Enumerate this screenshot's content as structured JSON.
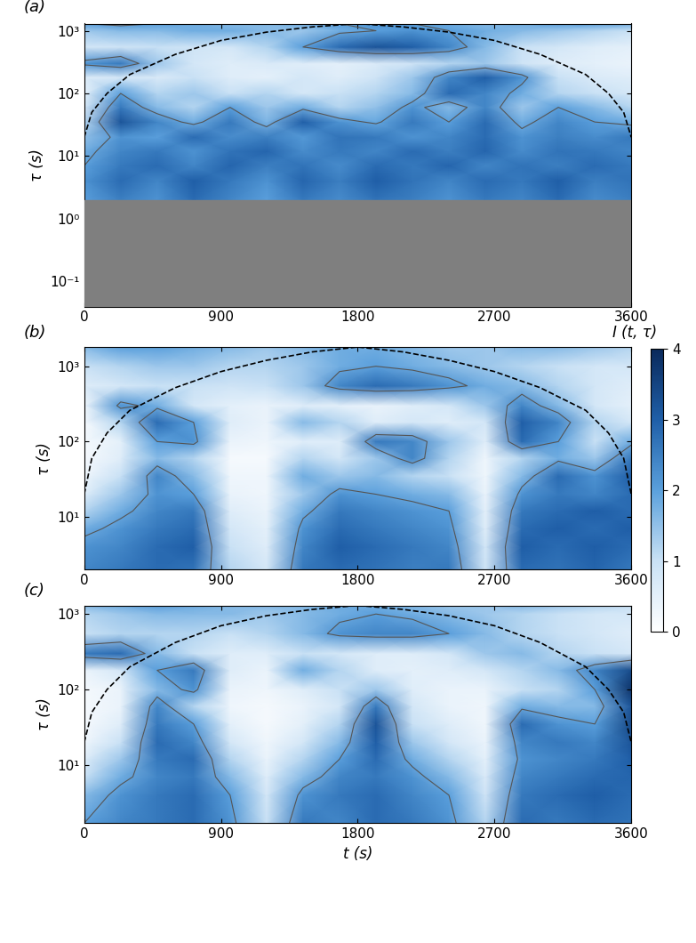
{
  "chart_data": [
    {
      "type": "heatmap",
      "panel_label": "(a)",
      "ylabel": "τ (s)",
      "log": "y",
      "xlim": [
        0,
        3600
      ],
      "xticks": [
        0,
        900,
        1800,
        2700,
        3600
      ],
      "ylim": [
        0.04,
        1300
      ],
      "yticks": [
        {
          "value": 0.1,
          "label": "10⁻¹"
        },
        {
          "value": 1,
          "label": "10⁰"
        },
        {
          "value": 10,
          "label": "10¹"
        },
        {
          "value": 100,
          "label": "10²"
        },
        {
          "value": 1000,
          "label": "10³"
        }
      ],
      "mask_below": 2,
      "contour_levels": [
        2
      ],
      "t": [
        0,
        240,
        480,
        720,
        960,
        1200,
        1440,
        1680,
        1920,
        2160,
        2400,
        2640,
        2880,
        3120,
        3360,
        3600
      ],
      "tau": [
        2,
        4,
        7,
        12,
        20,
        35,
        60,
        100,
        180,
        300,
        550,
        1000,
        1300
      ],
      "cells": [
        [
          2.0,
          2.5,
          2.2,
          2.8,
          2.4,
          2.0,
          2.6,
          2.3,
          2.7,
          2.5,
          2.2,
          2.6,
          2.4,
          2.8,
          2.3,
          2.5
        ],
        [
          2.2,
          2.8,
          2.4,
          3.0,
          2.6,
          2.2,
          2.9,
          2.5,
          3.0,
          2.7,
          2.4,
          2.8,
          2.6,
          3.0,
          2.5,
          2.7
        ],
        [
          2.0,
          2.6,
          2.8,
          2.4,
          2.9,
          2.5,
          2.7,
          2.3,
          2.8,
          2.6,
          2.9,
          2.4,
          2.7,
          2.5,
          2.8,
          2.6
        ],
        [
          1.8,
          2.4,
          2.6,
          2.2,
          2.7,
          2.9,
          2.3,
          2.6,
          2.4,
          2.8,
          2.5,
          2.9,
          2.3,
          2.7,
          2.6,
          2.4
        ],
        [
          1.5,
          2.2,
          2.0,
          2.8,
          2.3,
          2.5,
          2.1,
          2.7,
          2.6,
          2.2,
          2.4,
          2.8,
          2.2,
          2.5,
          2.3,
          2.6
        ],
        [
          1.2,
          3.2,
          2.4,
          1.8,
          2.6,
          1.7,
          3.0,
          2.2,
          1.9,
          2.6,
          2.0,
          2.8,
          1.8,
          2.4,
          2.0,
          1.8
        ],
        [
          0.8,
          2.6,
          1.6,
          1.2,
          2.0,
          1.4,
          1.8,
          1.2,
          1.5,
          2.2,
          1.6,
          2.4,
          1.4,
          2.0,
          1.6,
          1.2
        ],
        [
          0.5,
          2.0,
          1.2,
          1.4,
          1.0,
          1.2,
          0.8,
          1.0,
          1.2,
          1.6,
          2.8,
          2.4,
          1.8,
          1.2,
          1.0,
          0.8
        ],
        [
          0.6,
          0.8,
          0.7,
          1.0,
          0.6,
          0.5,
          0.8,
          0.6,
          0.9,
          1.4,
          2.4,
          3.0,
          2.2,
          1.0,
          0.7,
          0.6
        ],
        [
          2.2,
          2.6,
          1.4,
          0.8,
          0.6,
          0.7,
          0.6,
          0.5,
          0.7,
          0.9,
          1.2,
          1.4,
          0.9,
          0.6,
          0.5,
          0.4
        ],
        [
          0.8,
          0.9,
          1.0,
          0.9,
          0.8,
          1.2,
          2.0,
          2.8,
          3.2,
          3.0,
          2.4,
          1.6,
          1.0,
          0.8,
          0.6,
          0.5
        ],
        [
          1.4,
          1.6,
          1.6,
          1.8,
          1.8,
          1.6,
          1.4,
          1.8,
          2.0,
          2.2,
          2.0,
          1.8,
          1.6,
          1.4,
          1.2,
          1.0
        ],
        [
          2.0,
          2.2,
          2.0,
          1.8,
          1.6,
          1.6,
          1.8,
          2.0,
          2.2,
          2.0,
          1.8,
          1.6,
          1.8,
          2.0,
          2.0,
          1.8
        ]
      ],
      "cone": {
        "x": [
          0,
          50,
          150,
          300,
          600,
          900,
          1200,
          1500,
          1800,
          2100,
          2400,
          2700,
          3000,
          3300,
          3450,
          3550,
          3600
        ],
        "y": [
          20,
          50,
          100,
          200,
          420,
          700,
          950,
          1150,
          1300,
          1150,
          950,
          700,
          420,
          200,
          100,
          50,
          20
        ]
      }
    },
    {
      "type": "heatmap",
      "panel_label": "(b)",
      "ylabel": "τ (s)",
      "log": "y",
      "xlim": [
        0,
        3600
      ],
      "xticks": [
        0,
        900,
        1800,
        2700,
        3600
      ],
      "ylim": [
        2,
        1800
      ],
      "yticks": [
        {
          "value": 10,
          "label": "10¹"
        },
        {
          "value": 100,
          "label": "10²"
        },
        {
          "value": 1000,
          "label": "10³"
        }
      ],
      "contour_levels": [
        2
      ],
      "t": [
        0,
        240,
        480,
        720,
        960,
        1200,
        1440,
        1680,
        1920,
        2160,
        2400,
        2640,
        2880,
        3120,
        3360,
        3600
      ],
      "tau": [
        2,
        4,
        7,
        12,
        20,
        35,
        60,
        100,
        180,
        300,
        550,
        1000,
        1800
      ],
      "cells": [
        [
          2.4,
          2.6,
          2.8,
          2.7,
          1.2,
          0.8,
          2.6,
          2.8,
          2.7,
          2.5,
          2.6,
          0.9,
          2.8,
          2.7,
          2.9,
          2.6
        ],
        [
          2.2,
          2.4,
          2.8,
          3.0,
          1.0,
          0.6,
          2.4,
          3.0,
          2.8,
          2.6,
          2.4,
          0.8,
          3.0,
          2.8,
          3.0,
          2.8
        ],
        [
          1.8,
          2.2,
          2.6,
          2.8,
          0.8,
          0.5,
          2.2,
          2.8,
          2.6,
          2.4,
          2.2,
          0.6,
          2.8,
          3.0,
          2.8,
          3.0
        ],
        [
          1.2,
          1.8,
          2.4,
          2.6,
          0.6,
          0.4,
          1.8,
          2.6,
          2.4,
          2.2,
          2.0,
          0.5,
          2.6,
          2.8,
          3.0,
          2.8
        ],
        [
          0.6,
          1.4,
          2.2,
          2.0,
          0.4,
          0.3,
          1.4,
          2.2,
          2.0,
          1.8,
          1.6,
          0.4,
          2.2,
          2.6,
          2.4,
          2.8
        ],
        [
          0.3,
          1.0,
          2.4,
          1.6,
          0.3,
          0.3,
          1.8,
          1.4,
          1.6,
          1.2,
          1.0,
          0.3,
          1.6,
          2.8,
          2.2,
          3.0
        ],
        [
          0.2,
          0.6,
          1.6,
          1.2,
          0.2,
          0.2,
          1.2,
          0.8,
          1.4,
          2.4,
          1.2,
          0.3,
          1.2,
          1.8,
          1.4,
          2.6
        ],
        [
          0.2,
          0.5,
          2.0,
          2.2,
          0.4,
          0.3,
          0.6,
          0.6,
          2.6,
          2.4,
          1.4,
          0.6,
          2.8,
          2.0,
          1.0,
          1.8
        ],
        [
          0.2,
          1.2,
          2.8,
          2.0,
          0.6,
          0.4,
          1.6,
          1.2,
          0.6,
          0.8,
          0.6,
          0.8,
          3.0,
          2.4,
          1.2,
          0.8
        ],
        [
          0.3,
          2.2,
          1.8,
          0.8,
          0.5,
          0.4,
          0.6,
          0.5,
          0.4,
          0.6,
          0.8,
          1.4,
          2.4,
          1.6,
          0.8,
          0.5
        ],
        [
          0.6,
          0.8,
          1.0,
          1.0,
          0.9,
          1.0,
          1.4,
          2.4,
          2.8,
          2.6,
          2.2,
          1.8,
          1.6,
          1.2,
          0.8,
          0.6
        ],
        [
          1.0,
          1.2,
          1.4,
          1.4,
          1.2,
          1.2,
          1.4,
          1.8,
          2.0,
          1.8,
          1.6,
          1.4,
          1.2,
          1.0,
          0.8,
          0.8
        ],
        [
          1.6,
          2.0,
          2.0,
          1.8,
          1.6,
          1.4,
          1.6,
          1.8,
          1.8,
          1.6,
          1.4,
          1.4,
          1.6,
          1.6,
          1.4,
          1.2
        ]
      ],
      "cone": {
        "x": [
          0,
          50,
          150,
          300,
          600,
          900,
          1200,
          1500,
          1800,
          2100,
          2400,
          2700,
          3000,
          3300,
          3450,
          3550,
          3600
        ],
        "y": [
          20,
          60,
          130,
          260,
          520,
          850,
          1200,
          1550,
          1800,
          1550,
          1200,
          850,
          520,
          260,
          130,
          60,
          20
        ]
      }
    },
    {
      "type": "heatmap",
      "panel_label": "(c)",
      "ylabel": "τ (s)",
      "xlabel": "t (s)",
      "log": "y",
      "xlim": [
        0,
        3600
      ],
      "xticks": [
        0,
        900,
        1800,
        2700,
        3600
      ],
      "ylim": [
        1.7,
        1300
      ],
      "yticks": [
        {
          "value": 10,
          "label": "10¹"
        },
        {
          "value": 100,
          "label": "10²"
        },
        {
          "value": 1000,
          "label": "10³"
        }
      ],
      "contour_levels": [
        2
      ],
      "t": [
        0,
        240,
        480,
        720,
        960,
        1200,
        1440,
        1680,
        1920,
        2160,
        2400,
        2640,
        2880,
        3120,
        3360,
        3600
      ],
      "tau": [
        1.7,
        4,
        7,
        12,
        20,
        35,
        60,
        100,
        180,
        300,
        550,
        1000,
        1300
      ],
      "cells": [
        [
          2.0,
          2.4,
          2.6,
          2.8,
          2.2,
          1.0,
          2.6,
          2.4,
          2.8,
          2.6,
          2.2,
          1.2,
          2.8,
          2.6,
          2.8,
          2.7
        ],
        [
          1.6,
          2.2,
          2.6,
          2.8,
          2.0,
          0.8,
          2.2,
          2.6,
          2.8,
          2.4,
          2.0,
          0.9,
          2.6,
          2.8,
          3.0,
          2.8
        ],
        [
          1.0,
          1.8,
          2.4,
          2.6,
          1.6,
          0.6,
          1.6,
          2.4,
          2.6,
          2.2,
          1.6,
          0.7,
          2.4,
          2.6,
          2.8,
          2.9
        ],
        [
          0.6,
          1.4,
          2.6,
          2.8,
          1.2,
          0.4,
          1.2,
          2.0,
          2.8,
          1.8,
          1.2,
          0.5,
          2.2,
          2.4,
          2.6,
          3.0
        ],
        [
          0.3,
          1.0,
          2.8,
          2.4,
          0.8,
          0.3,
          0.8,
          1.6,
          3.0,
          1.4,
          0.8,
          0.4,
          2.4,
          2.6,
          2.4,
          3.2
        ],
        [
          0.2,
          0.6,
          2.6,
          2.0,
          0.5,
          0.2,
          0.5,
          1.2,
          3.2,
          1.0,
          0.6,
          0.3,
          2.8,
          2.2,
          2.0,
          3.4
        ],
        [
          0.2,
          0.4,
          2.4,
          1.2,
          0.3,
          0.2,
          0.4,
          0.8,
          2.6,
          0.8,
          0.4,
          0.3,
          1.8,
          1.6,
          1.6,
          3.2
        ],
        [
          0.2,
          0.4,
          1.6,
          2.2,
          0.4,
          0.3,
          0.6,
          1.0,
          1.4,
          0.6,
          0.4,
          0.4,
          1.0,
          1.2,
          2.0,
          3.8
        ],
        [
          0.4,
          0.8,
          2.0,
          2.6,
          0.6,
          0.4,
          1.8,
          1.2,
          0.6,
          0.5,
          0.6,
          0.8,
          1.2,
          1.6,
          2.4,
          3.4
        ],
        [
          2.6,
          2.8,
          1.6,
          1.0,
          0.6,
          0.6,
          1.0,
          0.8,
          0.6,
          0.6,
          0.8,
          1.4,
          1.6,
          1.2,
          1.0,
          0.8
        ],
        [
          1.0,
          1.2,
          1.2,
          1.2,
          1.0,
          1.2,
          1.6,
          2.2,
          2.4,
          2.4,
          2.0,
          1.6,
          1.2,
          1.0,
          0.8,
          0.6
        ],
        [
          1.2,
          1.4,
          1.6,
          1.6,
          1.6,
          1.4,
          1.6,
          1.8,
          2.0,
          1.8,
          1.6,
          1.4,
          1.2,
          1.0,
          0.8,
          0.8
        ],
        [
          1.6,
          1.8,
          2.0,
          1.8,
          1.6,
          1.6,
          1.6,
          1.8,
          1.8,
          1.6,
          1.4,
          1.4,
          1.6,
          1.4,
          1.2,
          1.0
        ]
      ],
      "cone": {
        "x": [
          0,
          50,
          150,
          300,
          600,
          900,
          1200,
          1500,
          1800,
          2100,
          2400,
          2700,
          3000,
          3300,
          3450,
          3550,
          3600
        ],
        "y": [
          20,
          50,
          100,
          200,
          420,
          700,
          950,
          1150,
          1300,
          1150,
          950,
          700,
          420,
          200,
          100,
          50,
          20
        ]
      }
    }
  ],
  "colorbar": {
    "label": "I (t, τ)",
    "range": [
      0,
      4
    ],
    "ticks": [
      0,
      1,
      2,
      3,
      4
    ]
  }
}
